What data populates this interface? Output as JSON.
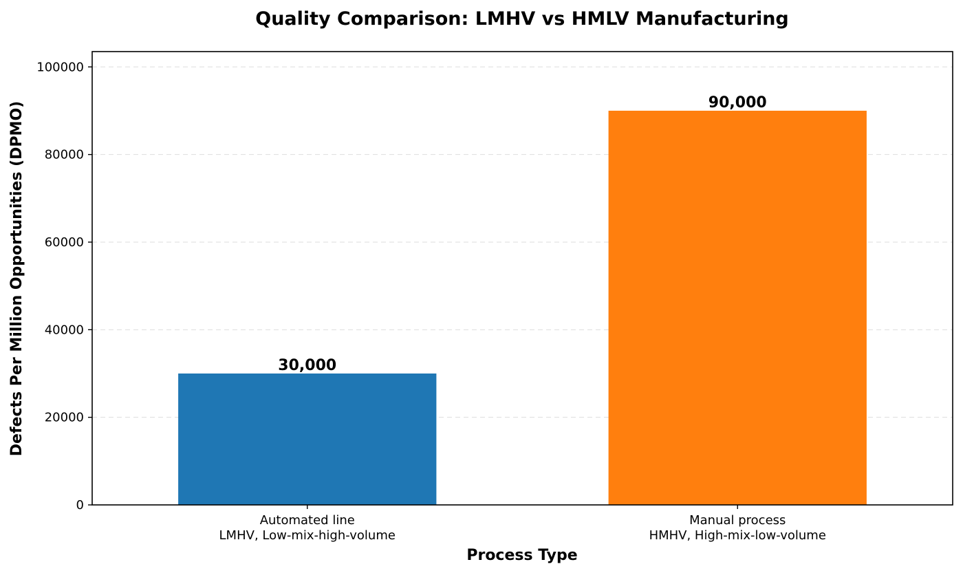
{
  "chart_data": {
    "type": "bar",
    "title": "Quality Comparison: LMHV vs HMLV Manufacturing",
    "xlabel": "Process Type",
    "ylabel": "Defects Per Million Opportunities (DPMO)",
    "ylim": [
      0,
      103500
    ],
    "yticks": [
      0,
      20000,
      40000,
      60000,
      80000,
      100000
    ],
    "ytick_labels": [
      "0",
      "20000",
      "40000",
      "60000",
      "80000",
      "100000"
    ],
    "grid": "horizontal dashed",
    "legend": "none",
    "categories": [
      [
        "Automated line",
        "LMHV, Low-mix-high-volume"
      ],
      [
        "Manual process",
        "HMHV, High-mix-low-volume"
      ]
    ],
    "values": [
      30000,
      90000
    ],
    "value_labels": [
      "30,000",
      "90,000"
    ],
    "colors": [
      "#1f77b4",
      "#ff7f0e"
    ]
  }
}
